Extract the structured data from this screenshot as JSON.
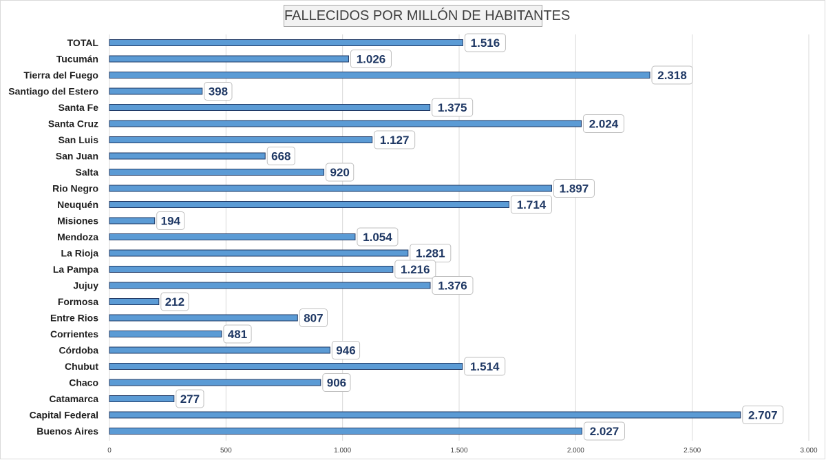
{
  "chart_data": {
    "type": "bar",
    "orientation": "horizontal",
    "title": "FALLECIDOS POR MILLÓN DE HABITANTES",
    "categories": [
      "TOTAL",
      "Tucumán",
      "Tierra del Fuego",
      "Santiago del Estero",
      "Santa Fe",
      "Santa Cruz",
      "San Luis",
      "San Juan",
      "Salta",
      "Rio Negro",
      "Neuquén",
      "Misiones",
      "Mendoza",
      "La Rioja",
      "La Pampa",
      "Jujuy",
      "Formosa",
      "Entre Rios",
      "Corrientes",
      "Córdoba",
      "Chubut",
      "Chaco",
      "Catamarca",
      "Capital Federal",
      "Buenos Aires"
    ],
    "values": [
      1516,
      1026,
      2318,
      398,
      1375,
      2024,
      1127,
      668,
      920,
      1897,
      1714,
      194,
      1054,
      1281,
      1216,
      1376,
      212,
      807,
      481,
      946,
      1514,
      906,
      277,
      2707,
      2027
    ],
    "value_labels": [
      "1.516",
      "1.026",
      "2.318",
      "398",
      "1.375",
      "2.024",
      "1.127",
      "668",
      "920",
      "1.897",
      "1.714",
      "194",
      "1.054",
      "1.281",
      "1.216",
      "1.376",
      "212",
      "807",
      "481",
      "946",
      "1.514",
      "906",
      "277",
      "2.707",
      "2.027"
    ],
    "xlim": [
      0,
      3000
    ],
    "x_ticks": [
      0,
      500,
      1000,
      1500,
      2000,
      2500,
      3000
    ],
    "x_tick_labels": [
      "0",
      "500",
      "1.000",
      "1.500",
      "2.000",
      "2.500",
      "3.000"
    ],
    "xlabel": "",
    "ylabel": "",
    "grid": "vertical",
    "legend": "none",
    "colors": {
      "bar_fill": "#5b9bd5",
      "bar_stroke": "#1f3864",
      "grid": "#d9d9d9",
      "value_text": "#1f3864",
      "label_box_border": "#bfbfbf"
    }
  }
}
